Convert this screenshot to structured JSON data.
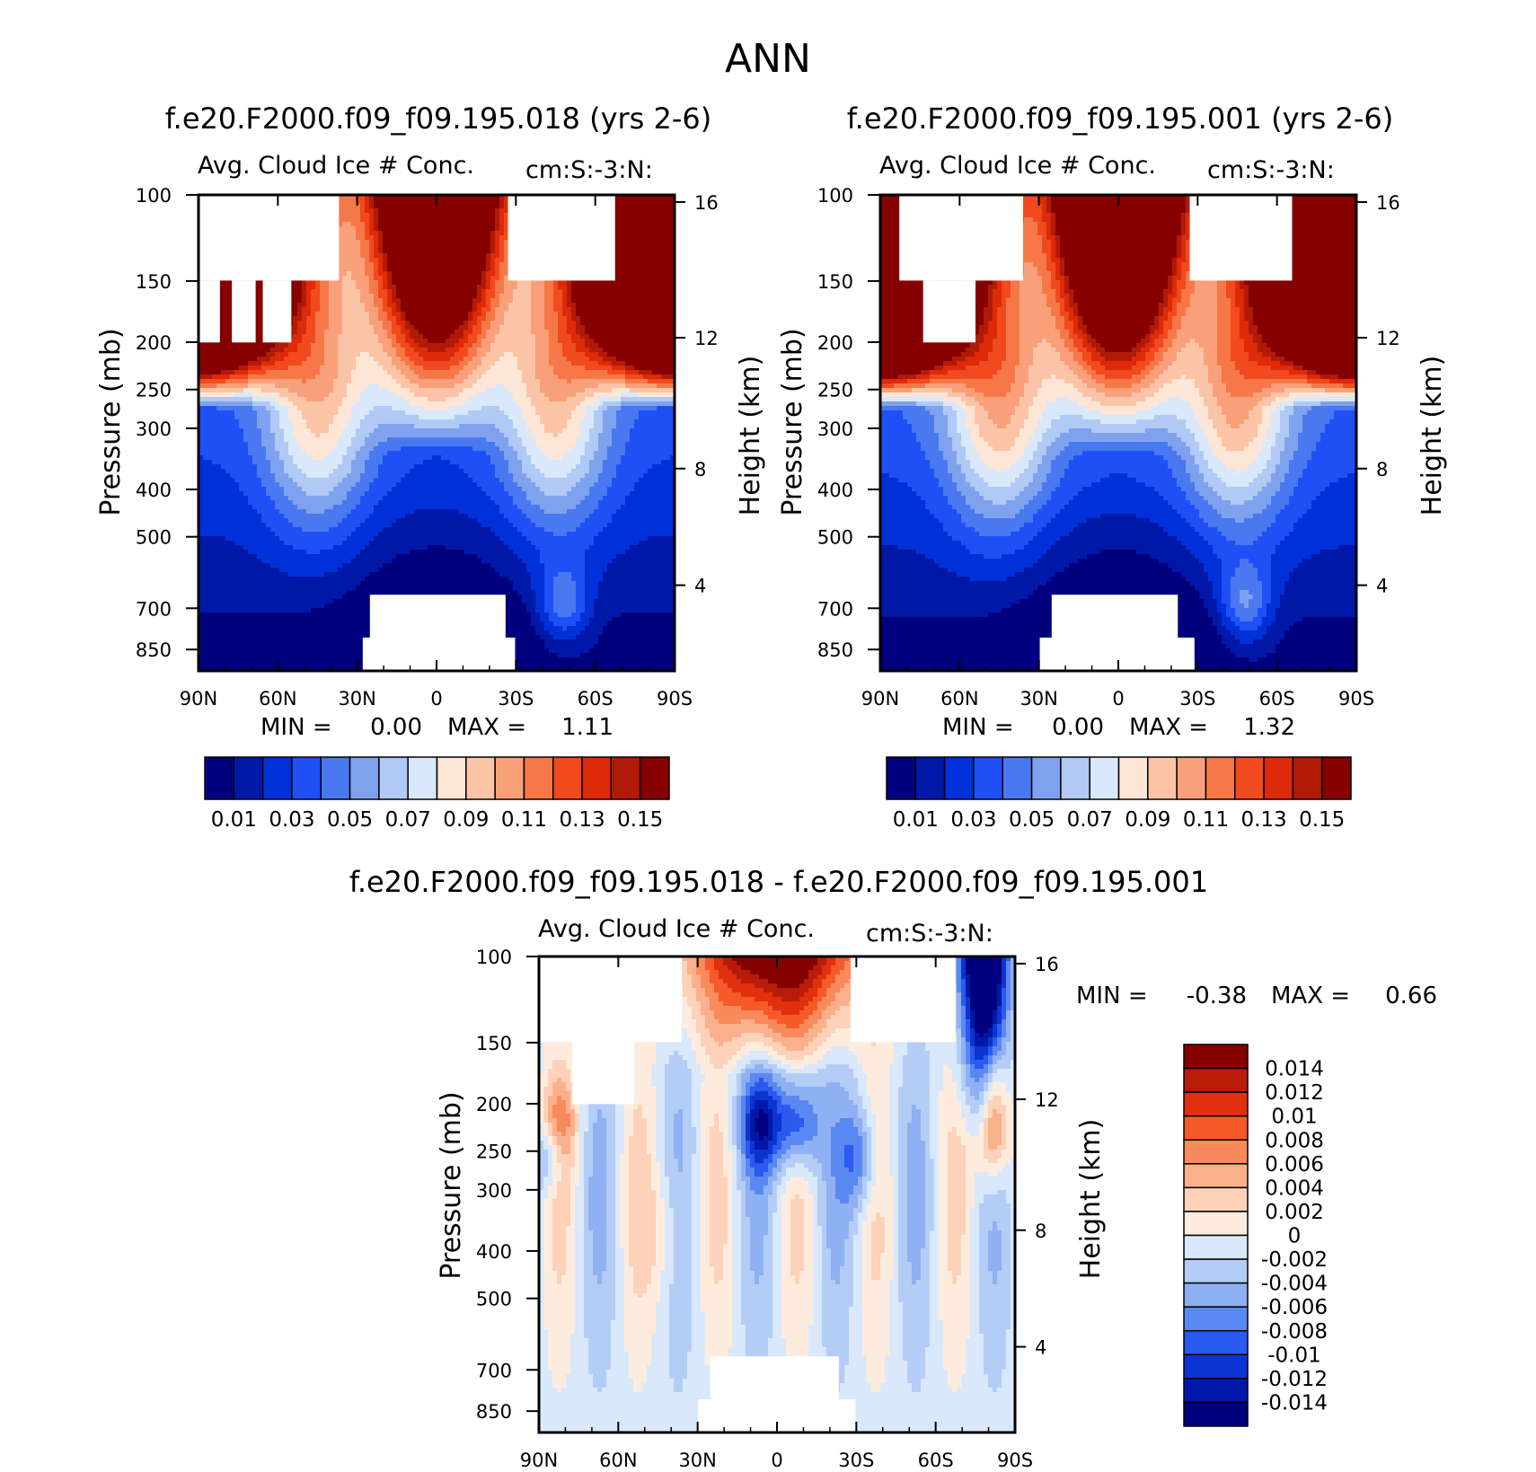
{
  "figure": {
    "main_title": "ANN"
  },
  "chart_data": [
    {
      "type": "heatmap",
      "title": "f.e20.F2000.f09_f09.195.018 (yrs 2-6)",
      "subtitle_left": "Avg. Cloud Ice # Conc.",
      "subtitle_right": "cm:S:-3:N:",
      "ylabel": "Pressure (mb)",
      "y2label": "Height (km)",
      "x_ticks": [
        "90N",
        "60N",
        "30N",
        "0",
        "30S",
        "60S",
        "90S"
      ],
      "y_ticks": [
        "100",
        "150",
        "200",
        "250",
        "300",
        "400",
        "500",
        "700",
        "850"
      ],
      "y2_ticks": [
        "16",
        "12",
        "8",
        "4"
      ],
      "min_label": "MIN =",
      "min_value": "0.00",
      "max_label": "MAX =",
      "max_value": "1.11",
      "colorbar_labels": [
        "0.01",
        "0.03",
        "0.05",
        "0.07",
        "0.09",
        "0.11",
        "0.13",
        "0.15"
      ],
      "colorbar_colors": [
        "#00007f",
        "#0018a8",
        "#0030d8",
        "#1e50f5",
        "#4a78f0",
        "#7fa2ee",
        "#b0c9f5",
        "#d9e9fb",
        "#fde6d6",
        "#fcc4a6",
        "#f9a07a",
        "#f67848",
        "#f04a1e",
        "#dd2a08",
        "#b21a08",
        "#870000"
      ]
    },
    {
      "type": "heatmap",
      "title": "f.e20.F2000.f09_f09.195.001 (yrs 2-6)",
      "subtitle_left": "Avg. Cloud Ice # Conc.",
      "subtitle_right": "cm:S:-3:N:",
      "ylabel": "Pressure (mb)",
      "y2label": "Height (km)",
      "x_ticks": [
        "90N",
        "60N",
        "30N",
        "0",
        "30S",
        "60S",
        "90S"
      ],
      "y_ticks": [
        "100",
        "150",
        "200",
        "250",
        "300",
        "400",
        "500",
        "700",
        "850"
      ],
      "y2_ticks": [
        "16",
        "12",
        "8",
        "4"
      ],
      "min_label": "MIN =",
      "min_value": "0.00",
      "max_label": "MAX =",
      "max_value": "1.32",
      "colorbar_labels": [
        "0.01",
        "0.03",
        "0.05",
        "0.07",
        "0.09",
        "0.11",
        "0.13",
        "0.15"
      ],
      "colorbar_colors": [
        "#00007f",
        "#0018a8",
        "#0030d8",
        "#1e50f5",
        "#4a78f0",
        "#7fa2ee",
        "#b0c9f5",
        "#d9e9fb",
        "#fde6d6",
        "#fcc4a6",
        "#f9a07a",
        "#f67848",
        "#f04a1e",
        "#dd2a08",
        "#b21a08",
        "#870000"
      ]
    },
    {
      "type": "heatmap",
      "title": "f.e20.F2000.f09_f09.195.018 - f.e20.F2000.f09_f09.195.001",
      "subtitle_left": "Avg. Cloud Ice # Conc.",
      "subtitle_right": "cm:S:-3:N:",
      "ylabel": "Pressure (mb)",
      "y2label": "Height (km)",
      "x_ticks": [
        "90N",
        "60N",
        "30N",
        "0",
        "30S",
        "60S",
        "90S"
      ],
      "y_ticks": [
        "100",
        "150",
        "200",
        "250",
        "300",
        "400",
        "500",
        "700",
        "850"
      ],
      "y2_ticks": [
        "16",
        "12",
        "8",
        "4"
      ],
      "min_label": "MIN =",
      "min_value": "-0.38",
      "max_label": "MAX =",
      "max_value": "0.66",
      "colorbar_labels": [
        "0.014",
        "0.012",
        "0.01",
        "0.008",
        "0.006",
        "0.004",
        "0.002",
        "0",
        "-0.002",
        "-0.004",
        "-0.006",
        "-0.008",
        "-0.01",
        "-0.012",
        "-0.014"
      ],
      "colorbar_colors": [
        "#870000",
        "#b81c08",
        "#e0300e",
        "#f55a28",
        "#f98a5c",
        "#fbb08c",
        "#fdd2b8",
        "#fdecde",
        "#d9e9fb",
        "#b4cdf6",
        "#8fb0f2",
        "#5a88f2",
        "#2a5af0",
        "#0c34d0",
        "#0018a8",
        "#00007f"
      ]
    }
  ]
}
